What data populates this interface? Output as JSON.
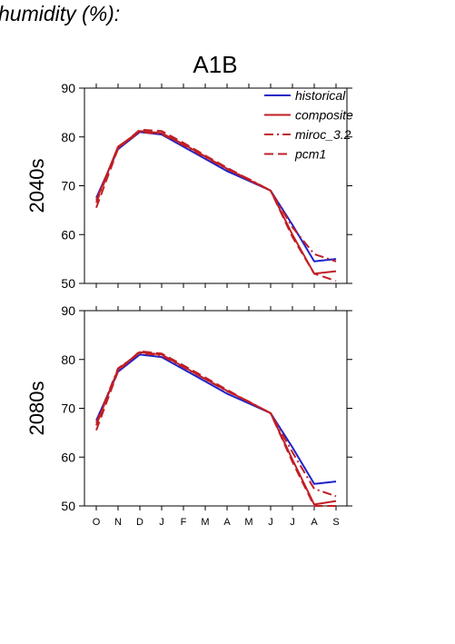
{
  "page": {
    "title": "humidity (%):"
  },
  "chart_data": {
    "type": "line",
    "title": "A1B",
    "x": [
      "O",
      "N",
      "D",
      "J",
      "F",
      "M",
      "A",
      "M",
      "J",
      "J",
      "A",
      "S"
    ],
    "ylim": [
      50,
      90
    ],
    "yticks": [
      50,
      60,
      70,
      80,
      90
    ],
    "legend": {
      "placement": "top-right",
      "entries": [
        "historical",
        "composite",
        "miroc_3.2",
        "pcm1"
      ]
    },
    "colors": {
      "historical": "#1f22c8",
      "composite": "#c01f25",
      "miroc_3.2": "#c01f25",
      "pcm1": "#c01f25"
    },
    "panels": [
      {
        "ylabel": "2040s",
        "series": [
          {
            "name": "historical",
            "style": "solid",
            "values": [
              67.5,
              77.5,
              81.0,
              80.5,
              78.0,
              75.5,
              73.0,
              71.0,
              69.0,
              62.0,
              54.5,
              55.0
            ]
          },
          {
            "name": "composite",
            "style": "solid",
            "values": [
              67.0,
              78.0,
              81.2,
              80.8,
              78.5,
              76.0,
              73.5,
              71.2,
              69.0,
              60.0,
              52.0,
              52.5
            ]
          },
          {
            "name": "miroc_3.2",
            "style": "dashdot",
            "values": [
              66.5,
              77.8,
              81.0,
              80.6,
              78.3,
              75.8,
              73.4,
              71.4,
              69.0,
              61.5,
              56.0,
              54.5
            ]
          },
          {
            "name": "pcm1",
            "style": "dashed",
            "values": [
              65.5,
              77.6,
              81.5,
              81.2,
              78.8,
              76.2,
              73.7,
              71.3,
              69.0,
              59.5,
              52.0,
              50.5
            ]
          }
        ]
      },
      {
        "ylabel": "2080s",
        "series": [
          {
            "name": "historical",
            "style": "solid",
            "values": [
              67.5,
              77.5,
              81.0,
              80.5,
              78.0,
              75.5,
              73.0,
              71.0,
              69.0,
              62.0,
              54.5,
              55.0
            ]
          },
          {
            "name": "composite",
            "style": "solid",
            "values": [
              66.5,
              78.0,
              81.5,
              81.0,
              78.5,
              76.0,
              73.6,
              71.3,
              69.0,
              59.5,
              50.3,
              51.0
            ]
          },
          {
            "name": "miroc_3.2",
            "style": "dashdot",
            "values": [
              67.0,
              78.2,
              81.3,
              80.8,
              78.4,
              76.0,
              73.5,
              71.4,
              69.0,
              61.0,
              53.5,
              52.0
            ]
          },
          {
            "name": "pcm1",
            "style": "dashed",
            "values": [
              65.5,
              77.6,
              81.7,
              81.2,
              78.8,
              76.3,
              73.8,
              71.3,
              69.0,
              59.0,
              50.0,
              50.0
            ]
          }
        ]
      }
    ]
  }
}
